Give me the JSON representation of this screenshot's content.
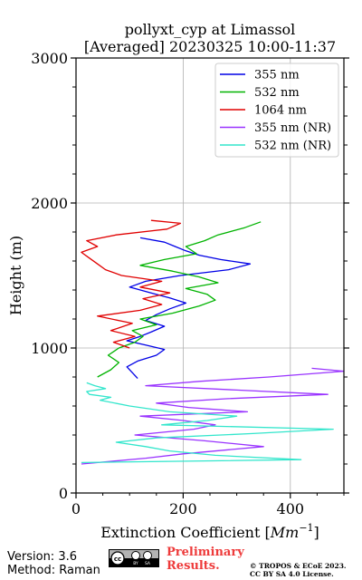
{
  "chart_data": {
    "type": "line",
    "title": "pollyxt_cyp at Limassol",
    "subtitle": "[Averaged] 20230325 10:00-11:37",
    "xlabel_prefix": "Extinction Coefficient [",
    "xlabel_unit": "Mm",
    "xlabel_exp": "−1",
    "xlabel_suffix": "]",
    "ylabel": "Height (m)",
    "xlim": [
      0,
      500
    ],
    "ylim": [
      0,
      3000
    ],
    "xticks": [
      0,
      200,
      400
    ],
    "yticks": [
      0,
      1000,
      2000,
      3000
    ],
    "grid": true,
    "legend_position": "top-right",
    "series": [
      {
        "name": "355 nm",
        "color": "#0000e6",
        "points": [
          [
            115,
            790
          ],
          [
            105,
            830
          ],
          [
            95,
            870
          ],
          [
            115,
            910
          ],
          [
            150,
            950
          ],
          [
            165,
            990
          ],
          [
            130,
            1020
          ],
          [
            95,
            1050
          ],
          [
            120,
            1080
          ],
          [
            140,
            1110
          ],
          [
            165,
            1150
          ],
          [
            130,
            1190
          ],
          [
            150,
            1230
          ],
          [
            175,
            1270
          ],
          [
            205,
            1310
          ],
          [
            175,
            1345
          ],
          [
            140,
            1380
          ],
          [
            100,
            1420
          ],
          [
            130,
            1460
          ],
          [
            195,
            1500
          ],
          [
            285,
            1540
          ],
          [
            325,
            1580
          ],
          [
            270,
            1610
          ],
          [
            230,
            1640
          ],
          [
            205,
            1670
          ],
          [
            185,
            1700
          ],
          [
            165,
            1730
          ],
          [
            120,
            1760
          ]
        ]
      },
      {
        "name": "532 nm",
        "color": "#00b300",
        "points": [
          [
            40,
            800
          ],
          [
            65,
            850
          ],
          [
            80,
            900
          ],
          [
            60,
            950
          ],
          [
            80,
            1000
          ],
          [
            110,
            1040
          ],
          [
            125,
            1080
          ],
          [
            105,
            1120
          ],
          [
            150,
            1160
          ],
          [
            120,
            1200
          ],
          [
            180,
            1240
          ],
          [
            230,
            1290
          ],
          [
            260,
            1330
          ],
          [
            245,
            1370
          ],
          [
            205,
            1410
          ],
          [
            265,
            1450
          ],
          [
            230,
            1490
          ],
          [
            180,
            1530
          ],
          [
            120,
            1570
          ],
          [
            165,
            1610
          ],
          [
            225,
            1650
          ],
          [
            205,
            1700
          ],
          [
            240,
            1740
          ],
          [
            265,
            1780
          ],
          [
            315,
            1830
          ],
          [
            345,
            1870
          ]
        ]
      },
      {
        "name": "1064 nm",
        "color": "#e00000",
        "points": [
          [
            100,
            1000
          ],
          [
            70,
            1040
          ],
          [
            110,
            1080
          ],
          [
            65,
            1120
          ],
          [
            105,
            1170
          ],
          [
            40,
            1220
          ],
          [
            120,
            1260
          ],
          [
            160,
            1300
          ],
          [
            125,
            1340
          ],
          [
            175,
            1380
          ],
          [
            120,
            1420
          ],
          [
            160,
            1460
          ],
          [
            85,
            1500
          ],
          [
            55,
            1540
          ],
          [
            40,
            1580
          ],
          [
            25,
            1620
          ],
          [
            10,
            1660
          ],
          [
            40,
            1700
          ],
          [
            20,
            1740
          ],
          [
            75,
            1780
          ],
          [
            170,
            1820
          ],
          [
            195,
            1860
          ],
          [
            140,
            1880
          ]
        ]
      },
      {
        "name": "355 nm (NR)",
        "color": "#9933ff",
        "points": [
          [
            10,
            200
          ],
          [
            130,
            240
          ],
          [
            200,
            270
          ],
          [
            350,
            320
          ],
          [
            240,
            360
          ],
          [
            110,
            400
          ],
          [
            220,
            440
          ],
          [
            260,
            470
          ],
          [
            200,
            500
          ],
          [
            120,
            530
          ],
          [
            320,
            560
          ],
          [
            210,
            590
          ],
          [
            150,
            620
          ],
          [
            280,
            650
          ],
          [
            470,
            680
          ],
          [
            300,
            710
          ],
          [
            130,
            740
          ],
          [
            230,
            770
          ],
          [
            360,
            800
          ],
          [
            500,
            840
          ],
          [
            440,
            860
          ]
        ]
      },
      {
        "name": "532 nm (NR)",
        "color": "#33e6cc",
        "points": [
          [
            10,
            210
          ],
          [
            420,
            230
          ],
          [
            260,
            260
          ],
          [
            175,
            290
          ],
          [
            130,
            320
          ],
          [
            75,
            350
          ],
          [
            150,
            380
          ],
          [
            330,
            410
          ],
          [
            480,
            440
          ],
          [
            160,
            470
          ],
          [
            245,
            500
          ],
          [
            300,
            530
          ],
          [
            175,
            560
          ],
          [
            100,
            600
          ],
          [
            45,
            640
          ],
          [
            65,
            660
          ],
          [
            25,
            680
          ],
          [
            20,
            700
          ],
          [
            55,
            720
          ],
          [
            35,
            740
          ],
          [
            20,
            760
          ]
        ]
      }
    ]
  },
  "footer": {
    "version": "Version: 3.6",
    "method": "Method: Raman",
    "preliminary_line1": "Preliminary",
    "preliminary_line2": "Results.",
    "copyright_line1": "© TROPOS & ECoE 2023.",
    "copyright_line2": "CC BY SA 4.0 License."
  }
}
